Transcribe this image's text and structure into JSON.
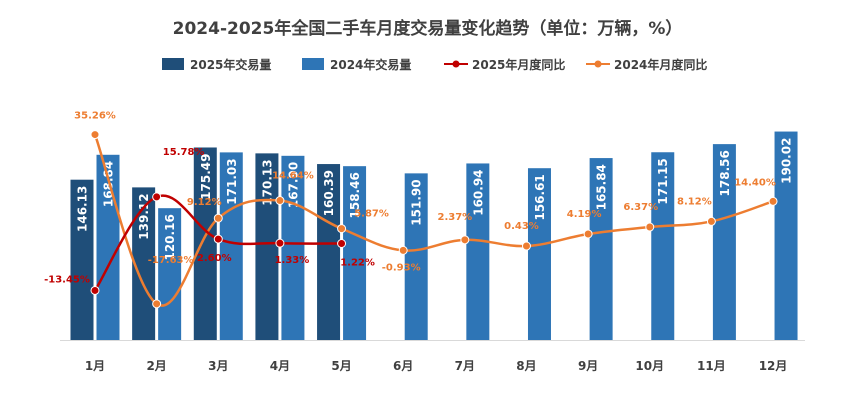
{
  "chart_data": {
    "type": "bar",
    "title": "2024-2025年全国二手车月度交易量变化趋势（单位：万辆，%）",
    "categories": [
      "1月",
      "2月",
      "3月",
      "4月",
      "5月",
      "6月",
      "7月",
      "8月",
      "9月",
      "10月",
      "11月",
      "12月"
    ],
    "series": [
      {
        "name": "2025年交易量",
        "kind": "bar",
        "color": "#1f4e79",
        "values": [
          146.13,
          139.12,
          175.49,
          170.13,
          160.39,
          null,
          null,
          null,
          null,
          null,
          null,
          null
        ],
        "labels": [
          "146.13",
          "139.12",
          "175.49",
          "170.13",
          "160.39"
        ]
      },
      {
        "name": "2024年交易量",
        "kind": "bar",
        "color": "#2e75b6",
        "values": [
          168.84,
          120.16,
          171.03,
          167.9,
          158.46,
          151.9,
          160.94,
          156.61,
          165.84,
          171.15,
          178.56,
          190.02
        ],
        "labels": [
          "168.84",
          "120.16",
          "171.03",
          "167.90",
          "158.46",
          "151.90",
          "160.94",
          "156.61",
          "165.84",
          "171.15",
          "178.56",
          "190.02"
        ]
      },
      {
        "name": "2025年月度同比",
        "kind": "line",
        "color": "#c00000",
        "values": [
          -13.45,
          15.78,
          2.6,
          1.33,
          1.22,
          null,
          null,
          null,
          null,
          null,
          null,
          null
        ],
        "labels": [
          "-13.45%",
          "15.78%",
          "2.60%",
          "1.33%",
          "1.22%"
        ]
      },
      {
        "name": "2024年月度同比",
        "kind": "line",
        "color": "#ed7d31",
        "values": [
          35.26,
          -17.63,
          9.12,
          14.64,
          5.87,
          -0.93,
          2.37,
          0.43,
          4.19,
          6.37,
          8.12,
          14.4
        ],
        "labels": [
          "35.26%",
          "-17.63%",
          "9.12%",
          "14.64%",
          "5.87%",
          "-0.93%",
          "2.37%",
          "0.43%",
          "4.19%",
          "6.37%",
          "8.12%",
          "14.40%"
        ]
      }
    ],
    "bar_ylim": [
      0,
      200
    ],
    "line_ylim": [
      -25,
      45
    ],
    "legend_position": "top-center",
    "grid": false
  }
}
